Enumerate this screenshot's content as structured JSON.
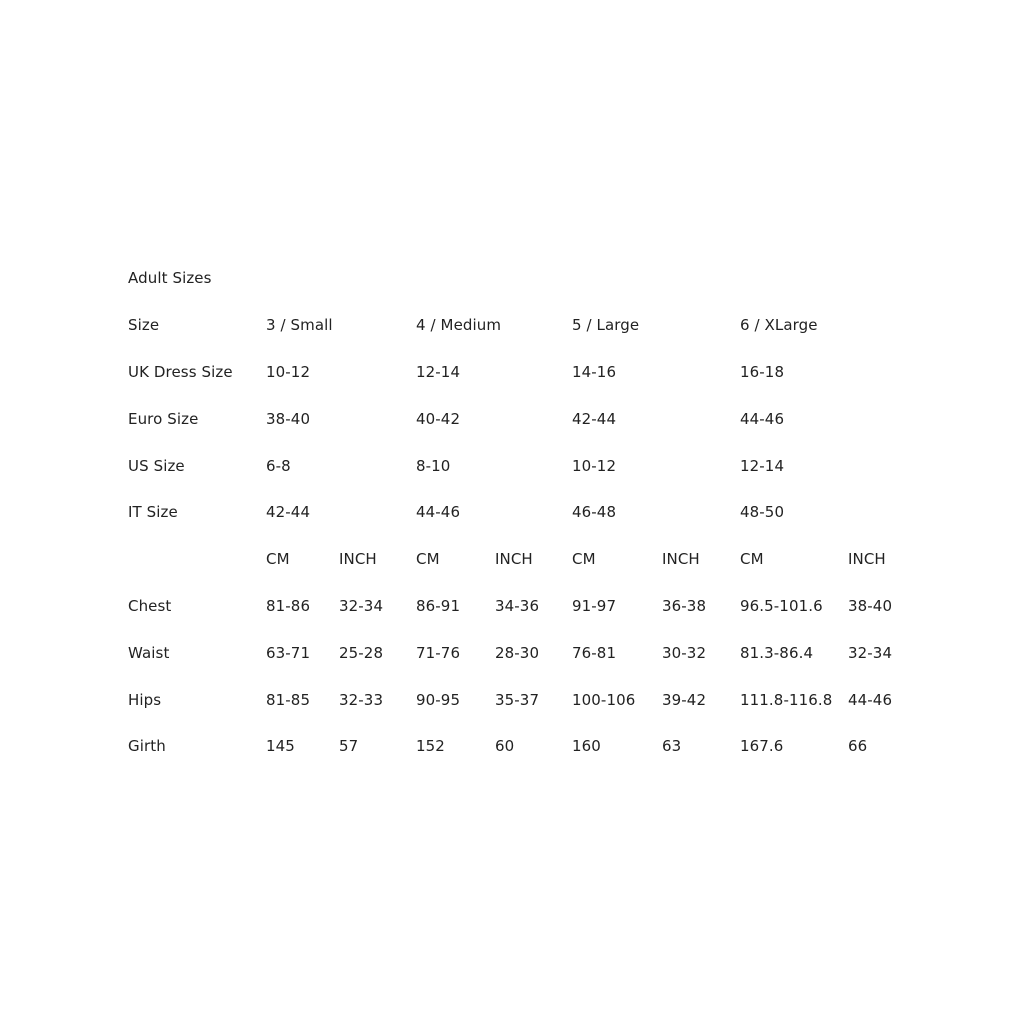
{
  "title": "Adult Sizes",
  "header_row": {
    "label": "Size",
    "cells": [
      "3 / Small",
      "4 / Medium",
      "5 / Large",
      "6 / XLarge"
    ]
  },
  "conversion_rows": [
    {
      "label": "UK Dress Size",
      "cells": [
        "10-12",
        "12-14",
        "14-16",
        "16-18"
      ]
    },
    {
      "label": "Euro Size",
      "cells": [
        "38-40",
        "40-42",
        "42-44",
        "44-46"
      ]
    },
    {
      "label": "US Size",
      "cells": [
        "6-8",
        "8-10",
        "10-12",
        "12-14"
      ]
    },
    {
      "label": "IT Size",
      "cells": [
        "42-44",
        "44-46",
        "46-48",
        "48-50"
      ]
    }
  ],
  "unit_row": {
    "label": "",
    "cells": [
      "CM",
      "INCH",
      "CM",
      "INCH",
      "CM",
      "INCH",
      "CM",
      "INCH"
    ]
  },
  "measurement_rows": [
    {
      "label": "Chest",
      "cells": [
        "81-86",
        "32-34",
        "86-91",
        "34-36",
        "91-97",
        "36-38",
        "96.5-101.6",
        "38-40"
      ]
    },
    {
      "label": "Waist",
      "cells": [
        "63-71",
        "25-28",
        "71-76",
        "28-30",
        "76-81",
        "30-32",
        "81.3-86.4",
        "32-34"
      ]
    },
    {
      "label": "Hips",
      "cells": [
        "81-85",
        "32-33",
        "90-95",
        "35-37",
        "100-106",
        "39-42",
        "111.8-116.8",
        "44-46"
      ]
    },
    {
      "label": "Girth",
      "cells": [
        "145",
        "57",
        "152",
        "60",
        "160",
        "63",
        "167.6",
        "66"
      ]
    }
  ]
}
